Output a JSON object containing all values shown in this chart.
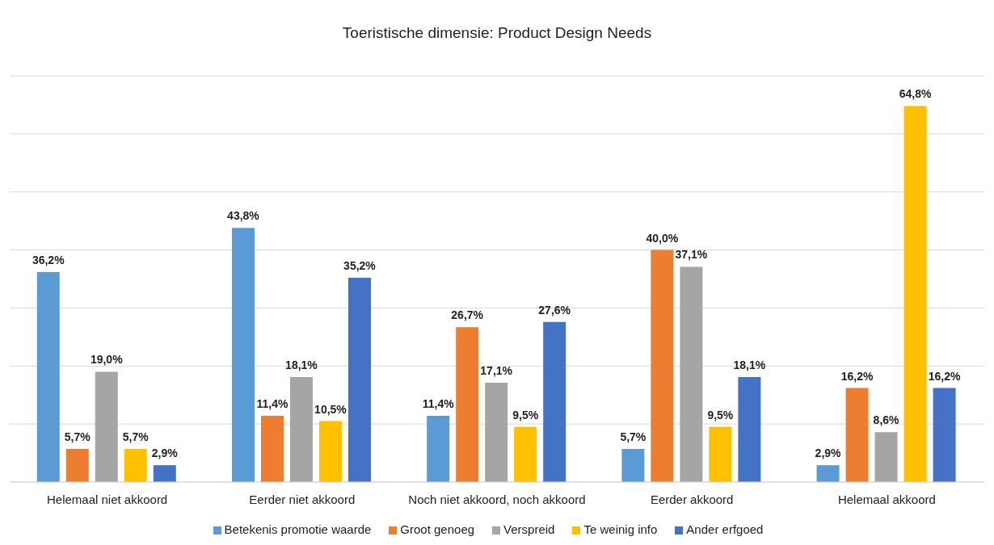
{
  "chart_data": {
    "type": "bar",
    "title": "Toeristische dimensie:  Product Design Needs",
    "categories": [
      "Helemaal niet akkoord",
      "Eerder niet akkoord",
      "Noch niet akkoord, noch akkoord",
      "Eerder akkoord",
      "Helemaal akkoord"
    ],
    "series": [
      {
        "name": "Betekenis promotie waarde",
        "color": "#5b9bd5",
        "values": [
          36.2,
          43.8,
          11.4,
          5.7,
          2.9
        ],
        "value_labels": [
          "36,2%",
          "43,8%",
          "11,4%",
          "5,7%",
          "2,9%"
        ]
      },
      {
        "name": "Groot genoeg",
        "color": "#ed7d31",
        "values": [
          5.7,
          11.4,
          26.7,
          40.0,
          16.2
        ],
        "value_labels": [
          "5,7%",
          "11,4%",
          "26,7%",
          "40,0%",
          "16,2%"
        ]
      },
      {
        "name": "Verspreid",
        "color": "#a5a5a5",
        "values": [
          19.0,
          18.1,
          17.1,
          37.1,
          8.6
        ],
        "value_labels": [
          "19,0%",
          "18,1%",
          "17,1%",
          "37,1%",
          "8,6%"
        ]
      },
      {
        "name": "Te weinig info",
        "color": "#ffc000",
        "values": [
          5.7,
          10.5,
          9.5,
          9.5,
          64.8
        ],
        "value_labels": [
          "5,7%",
          "10,5%",
          "9,5%",
          "9,5%",
          "64,8%"
        ]
      },
      {
        "name": "Ander erfgoed",
        "color": "#4472c4",
        "values": [
          2.9,
          35.2,
          27.6,
          18.1,
          16.2
        ],
        "value_labels": [
          "2,9%",
          "35,2%",
          "27,6%",
          "18,1%",
          "16,2%"
        ]
      }
    ],
    "tick_labels": "x",
    "grid": "y",
    "legend": "bottom"
  }
}
